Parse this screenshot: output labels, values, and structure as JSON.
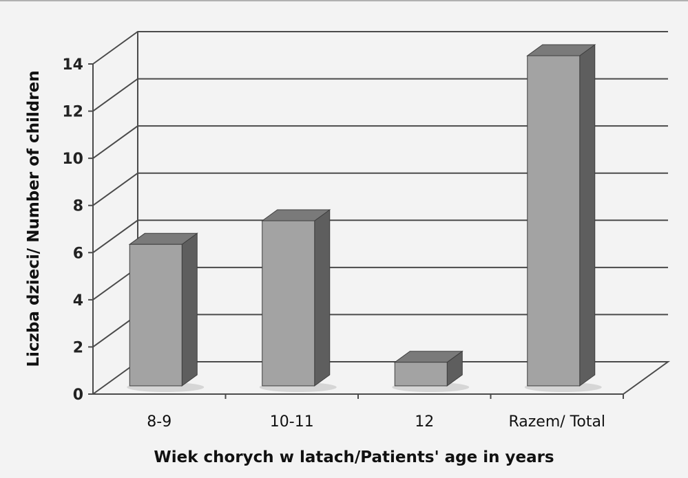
{
  "chart_data": {
    "type": "bar",
    "title": "",
    "xlabel": "Wiek chorych w latach/Patients' age in years",
    "ylabel": "Liczba dzieci/ Number of children",
    "categories": [
      "8-9",
      "10-11",
      "12",
      "Razem/ Total"
    ],
    "values": [
      6,
      7,
      1,
      14
    ],
    "ylim": [
      0,
      14
    ],
    "yticks": [
      0,
      2,
      4,
      6,
      8,
      10,
      12,
      14
    ],
    "grid": true,
    "legend": "none",
    "style": "3d-column",
    "colors": {
      "bar_front": "#a3a3a3",
      "bar_top": "#7a7a7a",
      "bar_side": "#5e5e5e",
      "grid": "#4a4a4a",
      "background": "#f3f3f3"
    }
  }
}
